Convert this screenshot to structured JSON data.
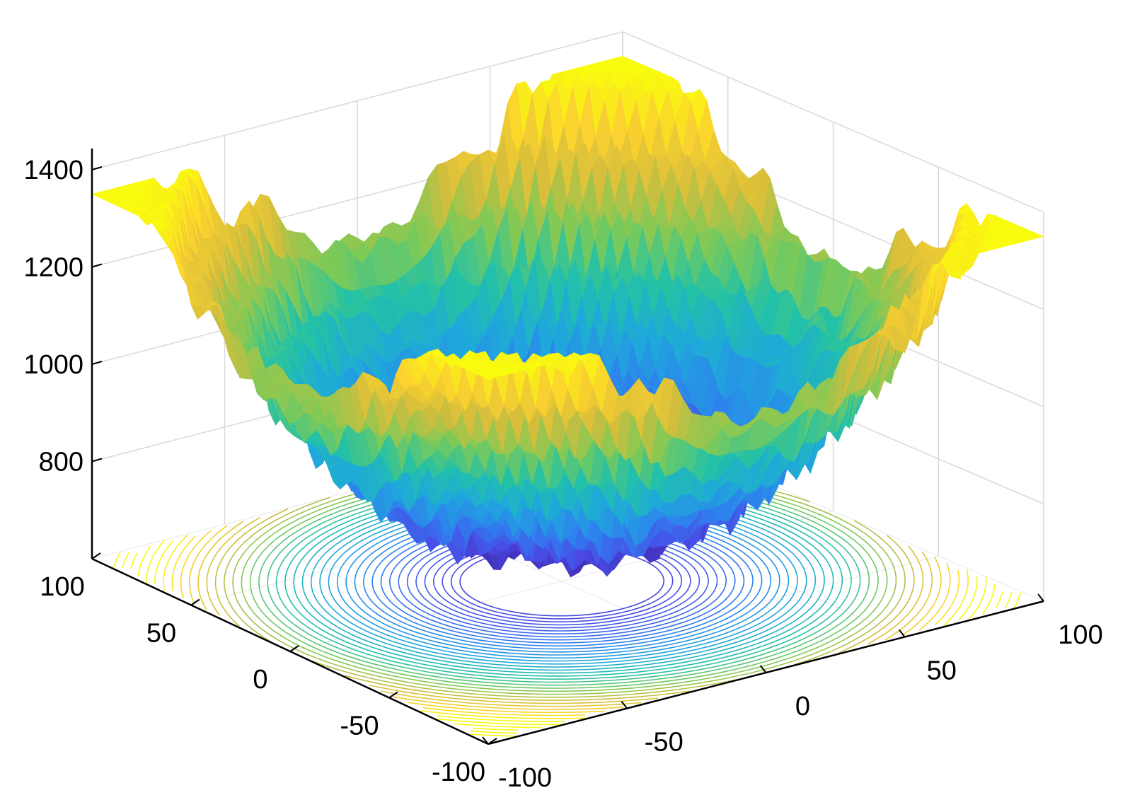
{
  "chart_data": {
    "type": "surface3d",
    "title": "",
    "xlabel": "",
    "ylabel": "",
    "zlabel": "",
    "xlim": [
      -100,
      100
    ],
    "ylim": [
      -100,
      100
    ],
    "zlim": [
      600,
      1400
    ],
    "x_ticks": [
      {
        "value": -100,
        "label": "-100"
      },
      {
        "value": -50,
        "label": "-50"
      },
      {
        "value": 0,
        "label": "0"
      },
      {
        "value": 50,
        "label": "50"
      },
      {
        "value": 100,
        "label": "100"
      }
    ],
    "y_ticks": [
      {
        "value": -100,
        "label": "-100"
      },
      {
        "value": -50,
        "label": "-50"
      },
      {
        "value": 0,
        "label": "0"
      },
      {
        "value": 50,
        "label": "50"
      },
      {
        "value": 100,
        "label": "100"
      }
    ],
    "z_ticks": [
      {
        "value": 800,
        "label": "800"
      },
      {
        "value": 1000,
        "label": "1000"
      },
      {
        "value": 1200,
        "label": "1200"
      },
      {
        "value": 1400,
        "label": "1400"
      }
    ],
    "surface": {
      "description_values": {
        "min_z": 680,
        "max_z": 1350,
        "center_z_approx": 700
      },
      "colormap": [
        "#3e26a8",
        "#4a4ae6",
        "#2f7fef",
        "#1fa8db",
        "#22c1a8",
        "#7cca58",
        "#d5bd3c",
        "#fbd22f",
        "#f9fb0e"
      ]
    },
    "contour_projection": true,
    "grid": true
  }
}
